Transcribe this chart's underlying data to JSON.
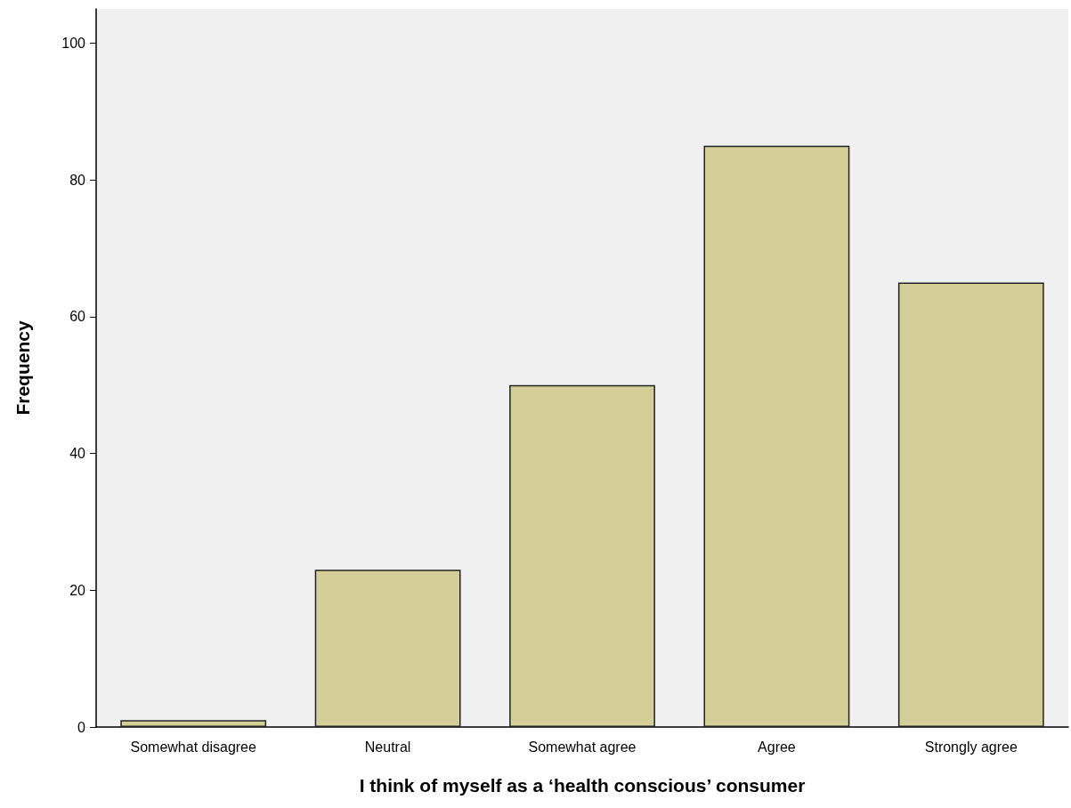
{
  "chart_data": {
    "type": "bar",
    "xlabel": "I think of myself as a ‘health conscious’ consumer",
    "ylabel": "Frequency",
    "categories": [
      "Somewhat disagree",
      "Neutral",
      "Somewhat agree",
      "Agree",
      "Strongly agree"
    ],
    "values": [
      1,
      23,
      50,
      85,
      65
    ],
    "color": "#d3ce97",
    "ylim": [
      0,
      105
    ],
    "yticks": [
      0,
      20,
      40,
      60,
      80,
      100
    ],
    "grid": false
  }
}
